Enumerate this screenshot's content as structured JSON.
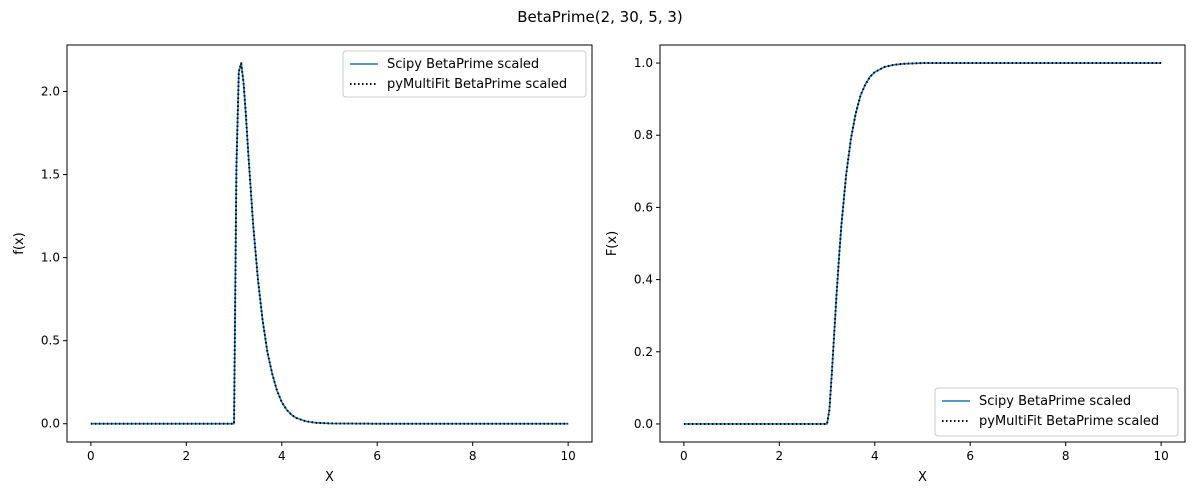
{
  "figure": {
    "suptitle": "BetaPrime(2, 30, 5, 3)"
  },
  "colors": {
    "scipy_line": "#1f77b4",
    "pymultifit_line": "#000000",
    "axes": "#000000"
  },
  "chart_data": [
    {
      "type": "line",
      "title": "",
      "xlabel": "X",
      "ylabel": "f(x)",
      "xlim": [
        -0.5,
        10.5
      ],
      "ylim": [
        -0.11,
        2.28
      ],
      "xticks": [
        0,
        2,
        4,
        6,
        8,
        10
      ],
      "xtick_labels": [
        "0",
        "2",
        "4",
        "6",
        "8",
        "10"
      ],
      "yticks": [
        0,
        0.5,
        1,
        1.5,
        2
      ],
      "ytick_labels": [
        "0.0",
        "0.5",
        "1.0",
        "1.5",
        "2.0"
      ],
      "grid": false,
      "legend": "upper right",
      "series": [
        {
          "name": "Scipy BetaPrime scaled",
          "style": "solid",
          "x": [
            0,
            1,
            2,
            2.98,
            3.0,
            3.05,
            3.1,
            3.15,
            3.2,
            3.25,
            3.3,
            3.4,
            3.5,
            3.6,
            3.7,
            3.8,
            3.9,
            4.0,
            4.1,
            4.2,
            4.3,
            4.5,
            4.7,
            5.0,
            6,
            7,
            8,
            9,
            10
          ],
          "y": [
            0,
            0,
            0,
            0,
            0,
            1.55,
            2.12,
            2.17,
            2.05,
            1.85,
            1.62,
            1.2,
            0.87,
            0.62,
            0.43,
            0.3,
            0.2,
            0.13,
            0.085,
            0.055,
            0.035,
            0.015,
            0.006,
            0.002,
            0,
            0,
            0,
            0,
            0
          ]
        },
        {
          "name": "pyMultiFit BetaPrime scaled",
          "style": "dotted",
          "x": [
            0,
            1,
            2,
            2.98,
            3.0,
            3.05,
            3.1,
            3.15,
            3.2,
            3.25,
            3.3,
            3.4,
            3.5,
            3.6,
            3.7,
            3.8,
            3.9,
            4.0,
            4.1,
            4.2,
            4.3,
            4.5,
            4.7,
            5.0,
            6,
            7,
            8,
            9,
            10
          ],
          "y": [
            0,
            0,
            0,
            0,
            0,
            1.55,
            2.12,
            2.17,
            2.05,
            1.85,
            1.62,
            1.2,
            0.87,
            0.62,
            0.43,
            0.3,
            0.2,
            0.13,
            0.085,
            0.055,
            0.035,
            0.015,
            0.006,
            0.002,
            0,
            0,
            0,
            0,
            0
          ]
        }
      ]
    },
    {
      "type": "line",
      "title": "",
      "xlabel": "X",
      "ylabel": "F(x)",
      "xlim": [
        -0.5,
        10.5
      ],
      "ylim": [
        -0.05,
        1.05
      ],
      "xticks": [
        0,
        2,
        4,
        6,
        8,
        10
      ],
      "xtick_labels": [
        "0",
        "2",
        "4",
        "6",
        "8",
        "10"
      ],
      "yticks": [
        0,
        0.2,
        0.4,
        0.6,
        0.8,
        1.0
      ],
      "ytick_labels": [
        "0.0",
        "0.2",
        "0.4",
        "0.6",
        "0.8",
        "1.0"
      ],
      "grid": false,
      "legend": "lower right",
      "series": [
        {
          "name": "Scipy BetaPrime scaled",
          "style": "solid",
          "x": [
            0,
            1,
            2,
            2.98,
            3.0,
            3.05,
            3.1,
            3.15,
            3.2,
            3.25,
            3.3,
            3.4,
            3.5,
            3.6,
            3.7,
            3.8,
            3.9,
            4.0,
            4.2,
            4.4,
            4.6,
            5.0,
            6,
            7,
            8,
            9,
            10
          ],
          "y": [
            0,
            0,
            0,
            0,
            0,
            0.04,
            0.14,
            0.25,
            0.36,
            0.46,
            0.55,
            0.69,
            0.79,
            0.86,
            0.91,
            0.94,
            0.962,
            0.975,
            0.989,
            0.995,
            0.998,
            1.0,
            1.0,
            1.0,
            1.0,
            1.0,
            1.0
          ]
        },
        {
          "name": "pyMultiFit BetaPrime scaled",
          "style": "dotted",
          "x": [
            0,
            1,
            2,
            2.98,
            3.0,
            3.05,
            3.1,
            3.15,
            3.2,
            3.25,
            3.3,
            3.4,
            3.5,
            3.6,
            3.7,
            3.8,
            3.9,
            4.0,
            4.2,
            4.4,
            4.6,
            5.0,
            6,
            7,
            8,
            9,
            10
          ],
          "y": [
            0,
            0,
            0,
            0,
            0,
            0.04,
            0.14,
            0.25,
            0.36,
            0.46,
            0.55,
            0.69,
            0.79,
            0.86,
            0.91,
            0.94,
            0.962,
            0.975,
            0.989,
            0.995,
            0.998,
            1.0,
            1.0,
            1.0,
            1.0,
            1.0,
            1.0
          ]
        }
      ]
    }
  ]
}
